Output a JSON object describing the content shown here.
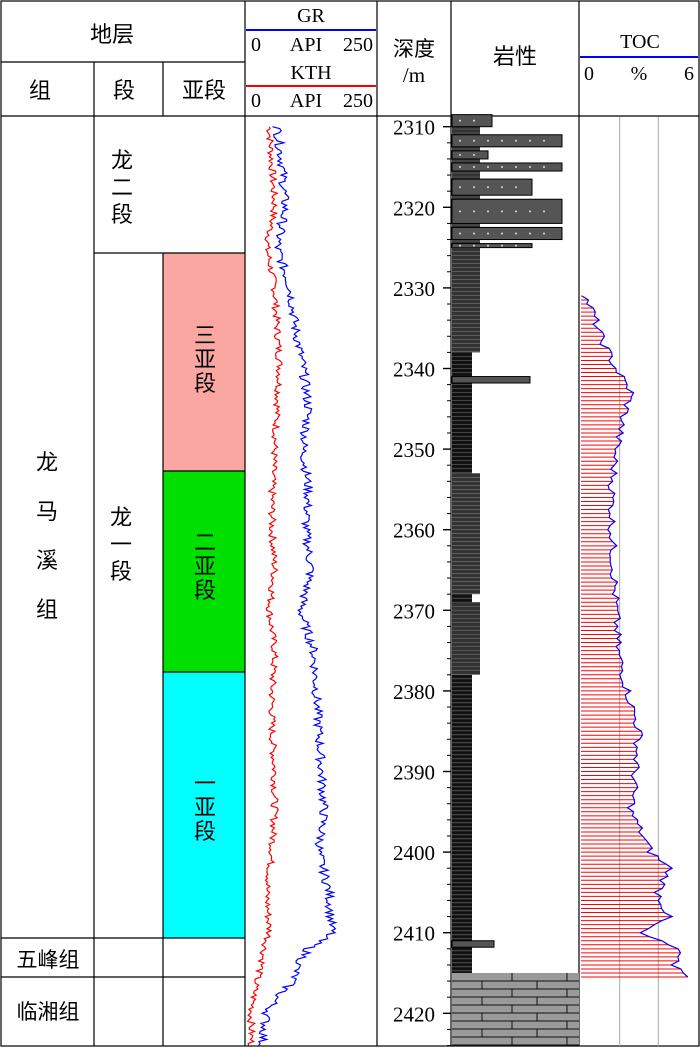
{
  "header": {
    "strata": "地层",
    "formation": "组",
    "member": "段",
    "submember": "亚段",
    "gr_name": "GR",
    "gr_min": "0",
    "gr_unit": "API",
    "gr_max": "250",
    "kth_name": "KTH",
    "kth_min": "0",
    "kth_unit": "API",
    "kth_max": "250",
    "depth_line1": "深度",
    "depth_line2": "/m",
    "lithology": "岩性",
    "toc_name": "TOC",
    "toc_min": "0",
    "toc_unit": "%",
    "toc_max": "6"
  },
  "strata": {
    "formations": [
      "龙马溪组",
      "五峰组",
      "临湘组"
    ],
    "members": [
      "龙二段",
      "龙一段"
    ],
    "submembers": [
      {
        "label": "三亚段",
        "color": "#f9a7a0"
      },
      {
        "label": "二亚段",
        "color": "#00e000"
      },
      {
        "label": "一亚段",
        "color": "#00ffff"
      }
    ]
  },
  "colors": {
    "gr": "#0000ff",
    "kth": "#ff0000",
    "toc_curve": "#0000ff",
    "toc_bars": "#ff0000",
    "toc_grid": "#aaaaaa",
    "lith_shale": "#111111",
    "lith_silty": "#555555",
    "lith_limestone": "#9a9a9a"
  },
  "chart_data": {
    "type": "line",
    "depth_axis": {
      "label": "深度/m",
      "min": 2308,
      "max": 2424,
      "ticks": [
        2310,
        2320,
        2330,
        2340,
        2350,
        2360,
        2370,
        2380,
        2390,
        2400,
        2410,
        2420
      ]
    },
    "boundaries": {
      "top": 2308,
      "long2_base": 2325,
      "sub3_base": 2352,
      "sub2_base": 2377,
      "sub1_base": 2410,
      "wufeng_base": 2415,
      "bottom": 2424
    },
    "series": [
      {
        "name": "GR",
        "unit": "API",
        "range": [
          0,
          250
        ],
        "depth": [
          2310,
          2315,
          2320,
          2325,
          2330,
          2335,
          2340,
          2345,
          2350,
          2355,
          2360,
          2365,
          2370,
          2375,
          2380,
          2385,
          2390,
          2395,
          2400,
          2405,
          2410,
          2412,
          2414,
          2416,
          2418,
          2420,
          2424
        ],
        "values": [
          60,
          70,
          75,
          60,
          85,
          95,
          110,
          120,
          110,
          120,
          115,
          125,
          105,
          130,
          135,
          140,
          145,
          150,
          140,
          160,
          165,
          120,
          100,
          90,
          60,
          40,
          30
        ]
      },
      {
        "name": "KTH",
        "unit": "API",
        "range": [
          0,
          250
        ],
        "depth": [
          2310,
          2315,
          2320,
          2325,
          2330,
          2335,
          2340,
          2345,
          2350,
          2355,
          2360,
          2365,
          2370,
          2375,
          2380,
          2385,
          2390,
          2395,
          2400,
          2405,
          2410,
          2412,
          2414,
          2416,
          2418,
          2420,
          2424
        ],
        "values": [
          45,
          50,
          55,
          40,
          55,
          60,
          65,
          60,
          55,
          50,
          50,
          55,
          45,
          55,
          50,
          50,
          55,
          55,
          50,
          40,
          45,
          35,
          30,
          20,
          15,
          10,
          10
        ]
      },
      {
        "name": "TOC",
        "unit": "%",
        "range": [
          0,
          6
        ],
        "depth": [
          2331,
          2333,
          2336,
          2338,
          2340,
          2343,
          2346,
          2350,
          2355,
          2360,
          2365,
          2370,
          2375,
          2380,
          2385,
          2390,
          2395,
          2400,
          2402,
          2405,
          2408,
          2410,
          2412,
          2414,
          2415.5
        ],
        "values": [
          0.2,
          0.6,
          1.0,
          1.4,
          1.8,
          2.6,
          2.2,
          1.8,
          1.6,
          1.6,
          1.7,
          1.8,
          1.9,
          2.4,
          3.0,
          2.8,
          2.6,
          3.6,
          4.6,
          4.0,
          4.5,
          3.0,
          5.0,
          4.8,
          5.7
        ]
      }
    ],
    "lithology": {
      "legend": [],
      "intervals": [
        {
          "top": 2308,
          "base": 2325,
          "type": "silty-interbedded"
        },
        {
          "top": 2325,
          "base": 2338,
          "type": "silty-shale"
        },
        {
          "top": 2338,
          "base": 2353,
          "type": "black-shale"
        },
        {
          "top": 2353,
          "base": 2368,
          "type": "silty-shale"
        },
        {
          "top": 2368,
          "base": 2369,
          "type": "black-shale"
        },
        {
          "top": 2369,
          "base": 2378,
          "type": "silty-shale"
        },
        {
          "top": 2378,
          "base": 2415,
          "type": "black-shale"
        },
        {
          "top": 2415,
          "base": 2424,
          "type": "limestone"
        }
      ]
    }
  }
}
